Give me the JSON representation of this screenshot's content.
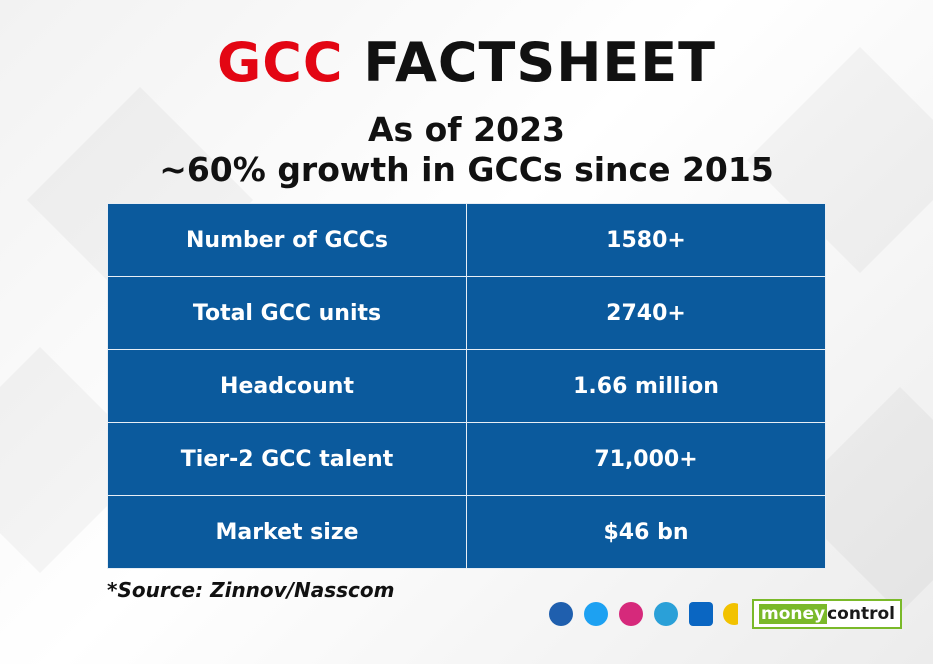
{
  "header": {
    "title_highlight": "GCC",
    "title_rest": "FACTSHEET",
    "subtitle": [
      "As of 2023",
      "~60% growth in GCCs since 2015"
    ]
  },
  "table": {
    "rows": [
      [
        "Number of GCCs",
        "1580+"
      ],
      [
        "Total GCC units",
        "2740+"
      ],
      [
        "Headcount",
        "1.66 million"
      ],
      [
        "Tier-2 GCC talent",
        "71,000+"
      ],
      [
        "Market size",
        "$46 bn"
      ]
    ]
  },
  "footer": {
    "source": "*Source: Zinnov/Nasscom",
    "logo": [
      "money",
      "control"
    ]
  }
}
